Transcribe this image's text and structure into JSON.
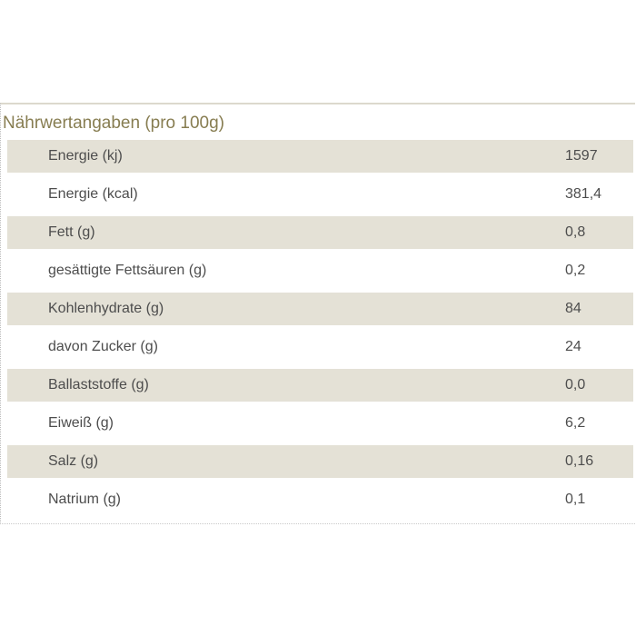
{
  "panel": {
    "title": "Nährwertangaben (pro 100g)"
  },
  "table": {
    "rows": [
      {
        "label": "Energie (kj)",
        "value": "1597"
      },
      {
        "label": "Energie (kcal)",
        "value": "381,4"
      },
      {
        "label": "Fett (g)",
        "value": "0,8"
      },
      {
        "label": "gesättigte Fettsäuren (g)",
        "value": "0,2"
      },
      {
        "label": "Kohlenhydrate (g)",
        "value": "84"
      },
      {
        "label": "davon Zucker (g)",
        "value": "24"
      },
      {
        "label": "Ballaststoffe (g)",
        "value": "0,0"
      },
      {
        "label": "Eiweiß (g)",
        "value": "6,2"
      },
      {
        "label": "Salz (g)",
        "value": "0,16"
      },
      {
        "label": "Natrium (g)",
        "value": "0,1"
      }
    ]
  },
  "colors": {
    "row_alt_background": "#e4e1d6",
    "title_text": "#877d51",
    "body_text": "#4d4d4d",
    "top_rule": "#dcd9cd",
    "dotted_border": "#bdbdbd"
  }
}
